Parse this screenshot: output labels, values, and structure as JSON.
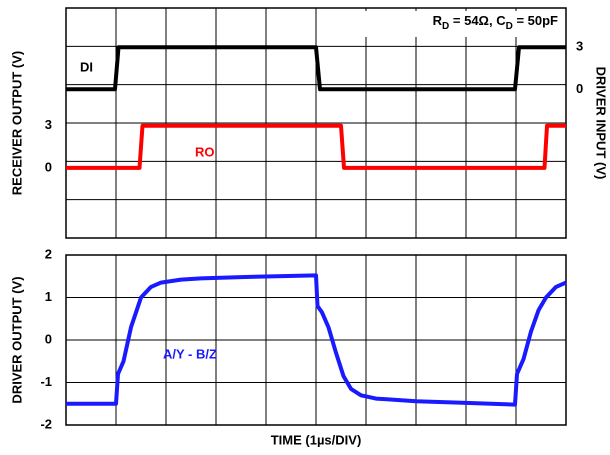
{
  "chart_data": [
    {
      "type": "line",
      "annotation": [
        "R",
        "D",
        " = 54Ω, C",
        "D",
        " = 50pF"
      ],
      "ylabel": "RECEIVER OUTPUT (V)",
      "y2label": "DRIVER INPUT (V)",
      "xlim": [
        0,
        10
      ],
      "ylim": [
        -5,
        11.4
      ],
      "yticks": [
        0,
        3
      ],
      "y2lim": [
        -10.6,
        5.8
      ],
      "y2ticks": [
        0,
        3
      ],
      "grid": true,
      "series": [
        {
          "name": "DI",
          "color": "#000000",
          "axis": "y2",
          "x": [
            0,
            0.98,
            1.05,
            5.0,
            5.08,
            8.98,
            9.06,
            10
          ],
          "values": [
            0,
            0,
            3,
            3,
            0,
            0,
            3,
            3
          ]
        },
        {
          "name": "RO",
          "color": "#ff0000",
          "x": [
            0,
            1.47,
            1.53,
            5.5,
            5.56,
            9.57,
            9.62,
            10
          ],
          "values": [
            0,
            0,
            3,
            3,
            0,
            0,
            3,
            3
          ]
        }
      ]
    },
    {
      "type": "line",
      "ylabel": "DRIVER OUTPUT (V)",
      "xlabel": "TIME (1µs/DIV)",
      "xlim": [
        0,
        10
      ],
      "ylim": [
        -2,
        2
      ],
      "yticks": [
        -2,
        -1,
        0,
        1,
        2
      ],
      "grid": true,
      "series": [
        {
          "name": "A/Y - B/Z",
          "color": "#1a1aff",
          "x": [
            0,
            1.0,
            1.04,
            1.15,
            1.3,
            1.5,
            1.7,
            1.9,
            2.3,
            2.7,
            3.5,
            5.0,
            5.03,
            5.12,
            5.25,
            5.4,
            5.55,
            5.7,
            5.9,
            6.2,
            7.0,
            8.0,
            8.98,
            9.02,
            9.15,
            9.3,
            9.45,
            9.6,
            9.8,
            10
          ],
          "values": [
            -1.5,
            -1.5,
            -0.8,
            -0.5,
            0.3,
            1.0,
            1.25,
            1.35,
            1.42,
            1.45,
            1.48,
            1.52,
            0.8,
            0.65,
            0.3,
            -0.3,
            -0.85,
            -1.15,
            -1.3,
            -1.38,
            -1.44,
            -1.48,
            -1.52,
            -0.8,
            -0.45,
            0.2,
            0.7,
            1.0,
            1.25,
            1.35
          ]
        }
      ]
    }
  ]
}
